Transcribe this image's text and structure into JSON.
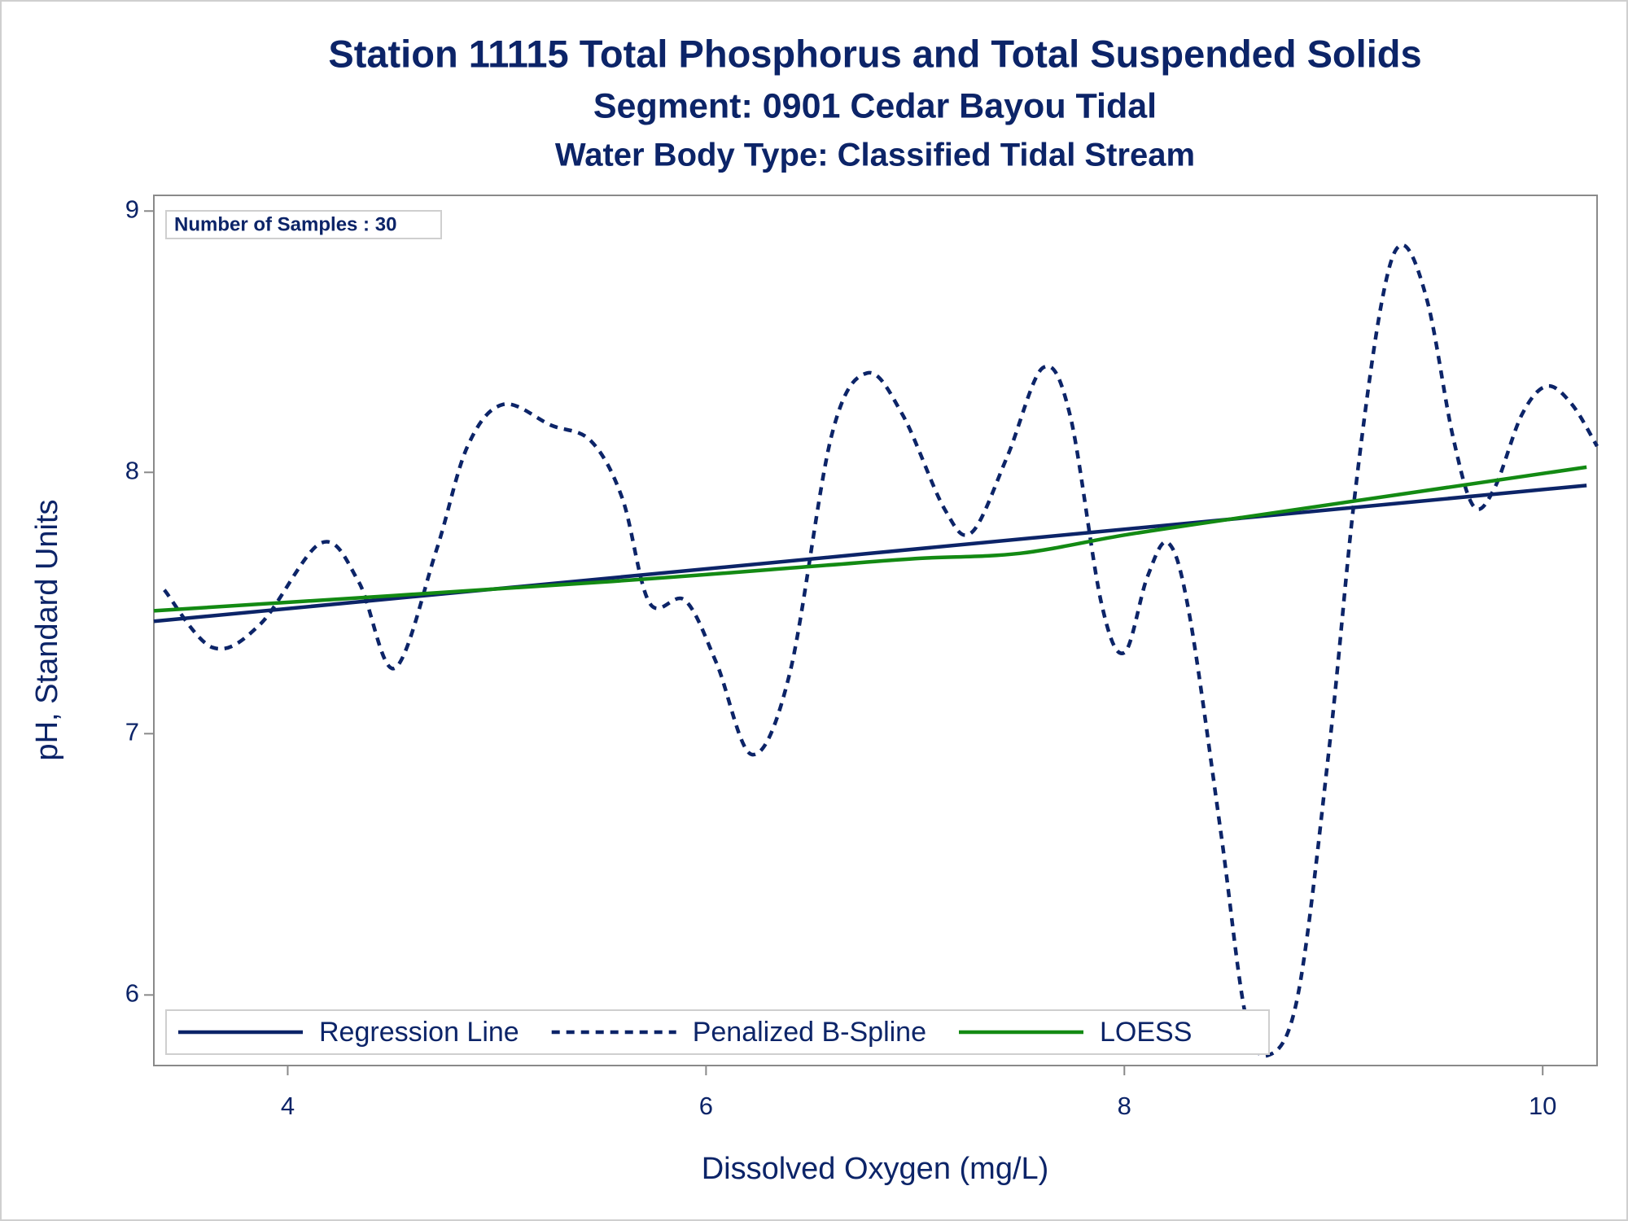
{
  "chart_data": {
    "type": "line",
    "title": "Station 11115  Total Phosphorus and Total Suspended Solids",
    "subtitle": "Segment: 0901  Cedar Bayou Tidal",
    "subtitle2": "Water Body Type: Classified Tidal Stream",
    "note": "Number of Samples : 30",
    "xlabel": "Dissolved Oxygen (mg/L)",
    "ylabel": "pH, Standard Units",
    "xlim": [
      3.36,
      10.26
    ],
    "xticks": [
      4,
      6,
      8,
      10
    ],
    "ylim": [
      5.73,
      9.06
    ],
    "yticks": [
      6,
      7,
      8,
      9
    ],
    "legend": "bottom-left",
    "series": [
      {
        "name": "Regression Line",
        "color": "#0c2468",
        "style": "solid",
        "x": [
          3.36,
          10.21
        ],
        "values": [
          7.43,
          7.95
        ]
      },
      {
        "name": "Penalized B-Spline",
        "color": "#0c2468",
        "style": "dashed",
        "x": [
          3.41,
          3.64,
          3.87,
          4.16,
          4.34,
          4.51,
          4.71,
          4.86,
          5.03,
          5.26,
          5.45,
          5.6,
          5.73,
          5.9,
          6.05,
          6.22,
          6.4,
          6.6,
          6.77,
          6.94,
          7.14,
          7.27,
          7.44,
          7.61,
          7.74,
          7.89,
          8.0,
          8.11,
          8.21,
          8.31,
          8.46,
          8.58,
          8.69,
          8.83,
          8.98,
          9.1,
          9.23,
          9.33,
          9.45,
          9.57,
          9.67,
          9.77,
          9.9,
          10.02,
          10.14,
          10.26
        ],
        "values": [
          7.55,
          7.33,
          7.42,
          7.73,
          7.58,
          7.25,
          7.7,
          8.1,
          8.26,
          8.18,
          8.12,
          7.9,
          7.5,
          7.51,
          7.27,
          6.92,
          7.23,
          8.14,
          8.38,
          8.22,
          7.86,
          7.77,
          8.06,
          8.4,
          8.22,
          7.5,
          7.31,
          7.6,
          7.73,
          7.46,
          6.63,
          5.92,
          5.77,
          6.0,
          6.95,
          7.9,
          8.65,
          8.87,
          8.65,
          8.14,
          7.87,
          7.94,
          8.22,
          8.33,
          8.26,
          8.1
        ]
      },
      {
        "name": "LOESS",
        "color": "#138a13",
        "style": "solid",
        "x": [
          3.36,
          5.5,
          6.5,
          7.0,
          7.5,
          8.0,
          8.5,
          10.21
        ],
        "values": [
          7.47,
          7.58,
          7.64,
          7.67,
          7.69,
          7.76,
          7.82,
          8.02
        ]
      }
    ]
  }
}
